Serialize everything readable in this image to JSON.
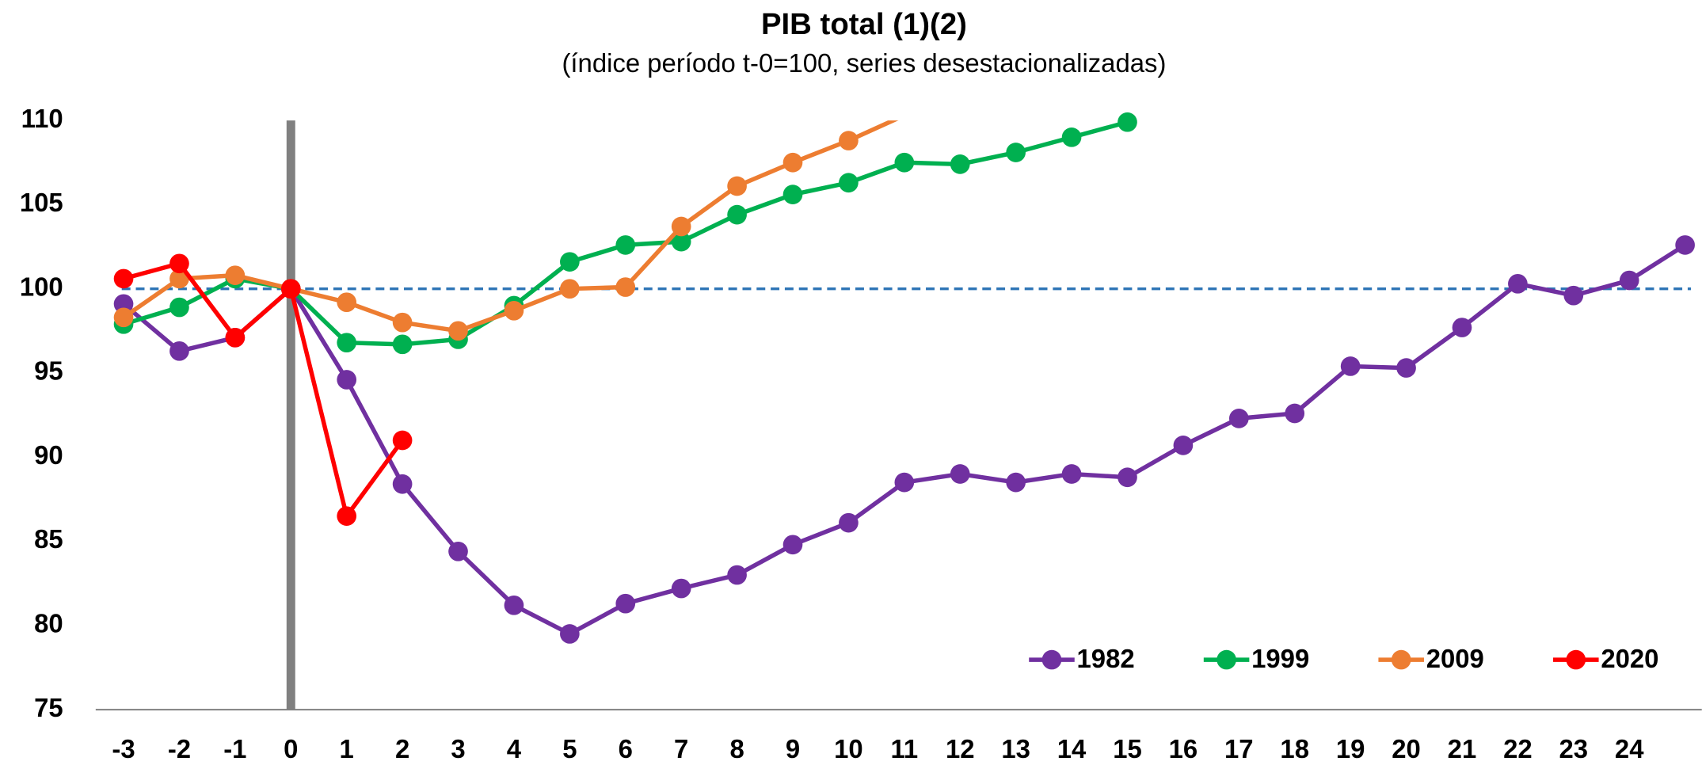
{
  "chart_data": {
    "type": "line",
    "title": "PIB total (1)(2)",
    "subtitle": "(índice período t-0=100, series desestacionalizadas)",
    "x": [
      -3,
      -2,
      -1,
      0,
      1,
      2,
      3,
      4,
      5,
      6,
      7,
      8,
      9,
      10,
      11,
      12,
      13,
      14,
      15,
      16,
      17,
      18,
      19,
      20,
      21,
      22,
      23,
      24,
      25
    ],
    "xlim": [
      -3.5,
      25.3
    ],
    "xticks": [
      -3,
      -2,
      -1,
      0,
      1,
      2,
      3,
      4,
      5,
      6,
      7,
      8,
      9,
      10,
      11,
      12,
      13,
      14,
      15,
      16,
      17,
      18,
      19,
      20,
      21,
      22,
      23,
      24
    ],
    "ylim": [
      75,
      110
    ],
    "yticks": [
      75,
      80,
      85,
      90,
      95,
      100,
      105,
      110
    ],
    "reference_line": 100,
    "reference_color": "#2e75b6",
    "event_line": 0,
    "event_color": "#808080",
    "legend": "lower right",
    "series": [
      {
        "name": "1982",
        "color": "#7030a0",
        "values": [
          99.1,
          96.3,
          97.1,
          100,
          94.6,
          88.4,
          84.4,
          81.2,
          79.5,
          81.3,
          82.2,
          83.0,
          84.8,
          86.1,
          88.5,
          89.0,
          88.5,
          89.0,
          88.8,
          90.7,
          92.3,
          92.6,
          95.4,
          95.3,
          97.7,
          100.3,
          99.6,
          100.5,
          102.6
        ]
      },
      {
        "name": "1999",
        "color": "#00b050",
        "values": [
          97.9,
          98.9,
          100.6,
          100,
          96.8,
          96.7,
          97.0,
          99.0,
          101.6,
          102.6,
          102.8,
          104.4,
          105.6,
          106.3,
          107.5,
          107.4,
          108.1,
          109.0,
          109.9,
          null,
          null,
          null,
          null,
          null,
          null,
          null,
          null,
          null,
          null
        ]
      },
      {
        "name": "2009",
        "color": "#ed7d31",
        "values": [
          98.3,
          100.6,
          100.8,
          100,
          99.2,
          98.0,
          97.5,
          98.7,
          100.0,
          100.1,
          103.7,
          106.1,
          107.5,
          108.8,
          110.3,
          null,
          null,
          null,
          null,
          null,
          null,
          null,
          null,
          null,
          null,
          null,
          null,
          null,
          null
        ]
      },
      {
        "name": "2020",
        "color": "#ff0000",
        "values": [
          100.6,
          101.5,
          97.1,
          100,
          86.5,
          91.0,
          null,
          null,
          null,
          null,
          null,
          null,
          null,
          null,
          null,
          null,
          null,
          null,
          null,
          null,
          null,
          null,
          null,
          null,
          null,
          null,
          null,
          null,
          null
        ]
      }
    ]
  }
}
